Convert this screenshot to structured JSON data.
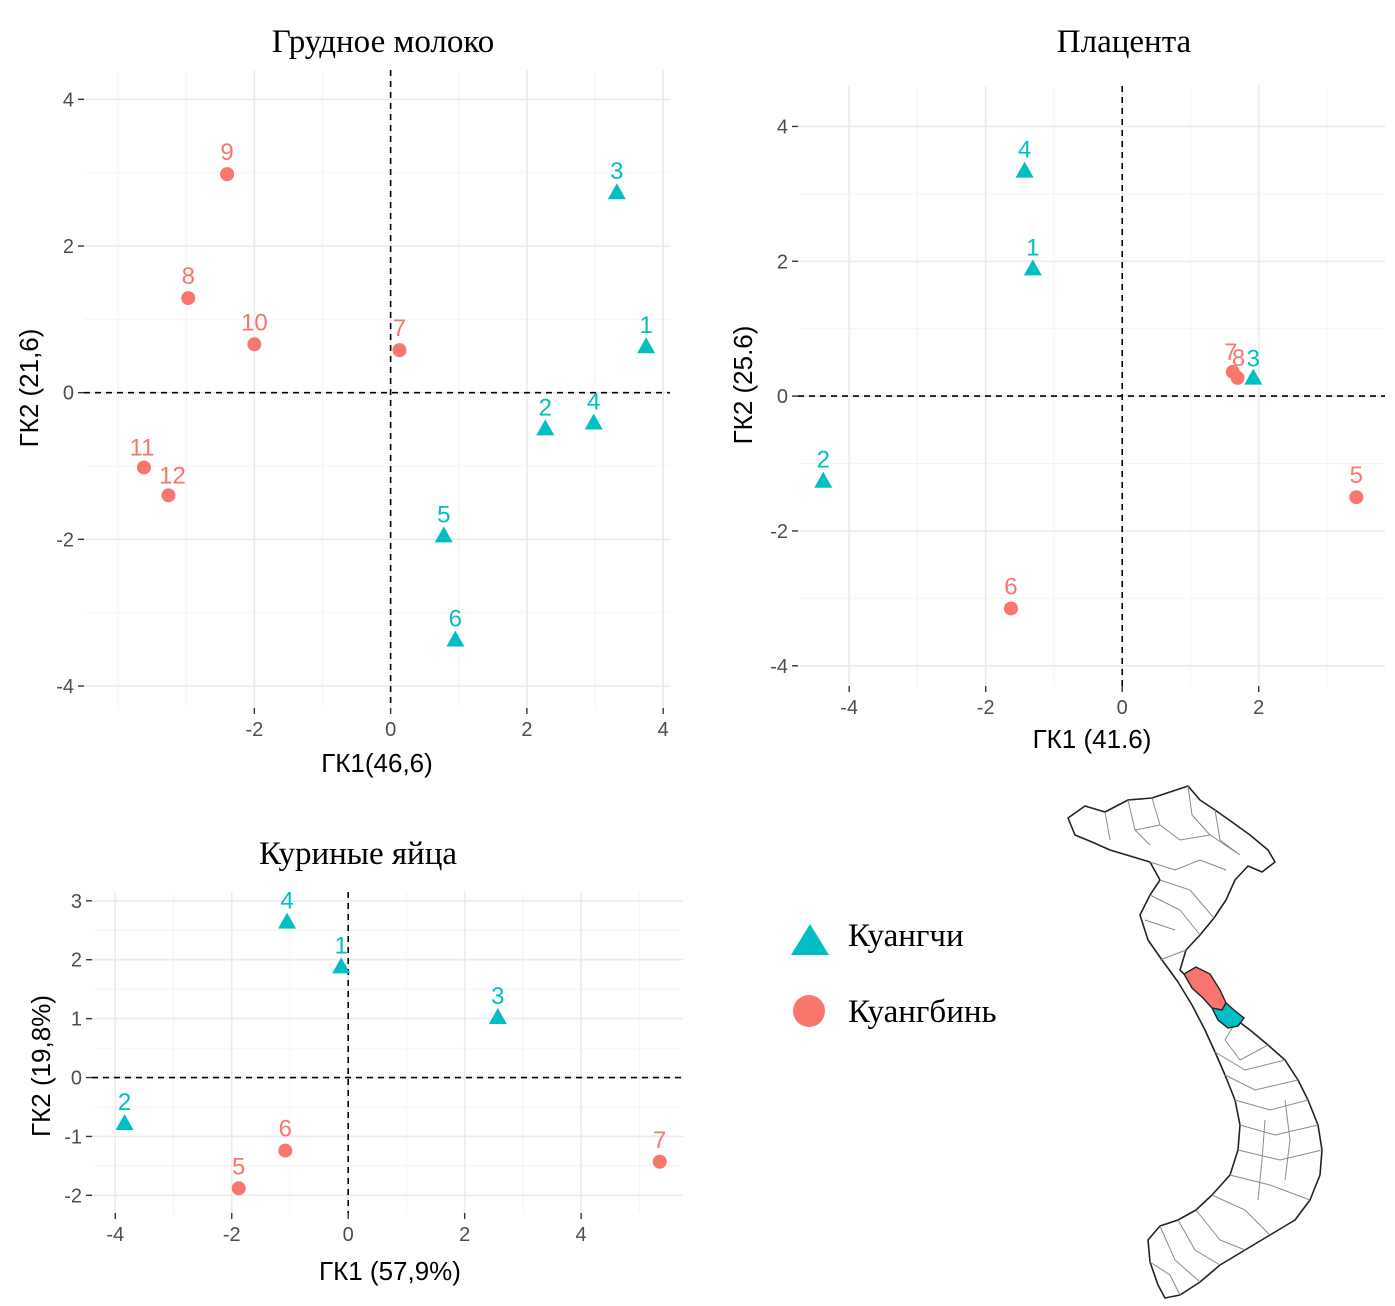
{
  "colors": {
    "quang_tri": "#00BFC4",
    "quang_binh": "#F8766D"
  },
  "legend": {
    "items": [
      {
        "key": "quang_tri",
        "label": "Куангчи",
        "shape": "triangle"
      },
      {
        "key": "quang_binh",
        "label": "Куангбинь",
        "shape": "circle"
      }
    ]
  },
  "map": {
    "icon": "vietnam-map-icon",
    "highlighted": [
      "quang_binh",
      "quang_tri"
    ]
  },
  "chart_data": [
    {
      "id": "breast-milk",
      "type": "scatter",
      "title": "Грудное молоко",
      "xlabel": "ГК1(46,6)",
      "ylabel": "ГК2 (21,6)",
      "xlim": [
        -4.5,
        4.1
      ],
      "ylim": [
        -4.3,
        4.4
      ],
      "xticks": [
        -2,
        0,
        2,
        4
      ],
      "yticks": [
        -4,
        -2,
        0,
        2,
        4
      ],
      "grid": true,
      "series": [
        {
          "group": "quang_tri",
          "points": [
            {
              "label": "1",
              "x": 3.75,
              "y": 0.62
            },
            {
              "label": "2",
              "x": 2.27,
              "y": -0.5
            },
            {
              "label": "3",
              "x": 3.32,
              "y": 2.72
            },
            {
              "label": "4",
              "x": 2.98,
              "y": -0.42
            },
            {
              "label": "5",
              "x": 0.78,
              "y": -1.96
            },
            {
              "label": "6",
              "x": 0.95,
              "y": -3.38
            }
          ]
        },
        {
          "group": "quang_binh",
          "points": [
            {
              "label": "7",
              "x": 0.13,
              "y": 0.58
            },
            {
              "label": "8",
              "x": -2.97,
              "y": 1.29
            },
            {
              "label": "9",
              "x": -2.4,
              "y": 2.98
            },
            {
              "label": "10",
              "x": -2.0,
              "y": 0.66
            },
            {
              "label": "11",
              "x": -3.62,
              "y": -1.02
            },
            {
              "label": "12",
              "x": -3.26,
              "y": -1.4
            }
          ]
        }
      ]
    },
    {
      "id": "placenta",
      "type": "scatter",
      "title": "Плацента",
      "xlabel": "ГК1 (41.6)",
      "ylabel": "ГК2 (25.6)",
      "xlim": [
        -4.75,
        3.85
      ],
      "ylim": [
        -4.3,
        4.6
      ],
      "xticks": [
        -4,
        -2,
        0,
        2
      ],
      "yticks": [
        -4,
        -2,
        0,
        2,
        4
      ],
      "grid": true,
      "series": [
        {
          "group": "quang_tri",
          "points": [
            {
              "label": "1",
              "x": -1.31,
              "y": 1.88
            },
            {
              "label": "2",
              "x": -4.38,
              "y": -1.27
            },
            {
              "label": "3",
              "x": 1.92,
              "y": 0.26
            },
            {
              "label": "4",
              "x": -1.43,
              "y": 3.33
            }
          ]
        },
        {
          "group": "quang_binh",
          "points": [
            {
              "label": "5",
              "x": 3.43,
              "y": -1.5
            },
            {
              "label": "6",
              "x": -1.63,
              "y": -3.15
            },
            {
              "label": "7",
              "x": 1.62,
              "y": 0.36
            },
            {
              "label": "8",
              "x": 1.69,
              "y": 0.27
            }
          ]
        }
      ]
    },
    {
      "id": "chicken-eggs",
      "type": "scatter",
      "title": "Куриные яйца",
      "xlabel": "ГК1 (57,9%)",
      "ylabel": "ГК2 (19,8%)",
      "xlim": [
        -4.4,
        5.75
      ],
      "ylim": [
        -2.3,
        3.15
      ],
      "xticks": [
        -4,
        -2,
        0,
        2,
        4
      ],
      "yticks": [
        -2,
        -1,
        0,
        1,
        2,
        3
      ],
      "grid": true,
      "series": [
        {
          "group": "quang_tri",
          "points": [
            {
              "label": "1",
              "x": -0.12,
              "y": 1.87
            },
            {
              "label": "2",
              "x": -3.84,
              "y": -0.79
            },
            {
              "label": "3",
              "x": 2.57,
              "y": 1.01
            },
            {
              "label": "4",
              "x": -1.05,
              "y": 2.63
            }
          ]
        },
        {
          "group": "quang_binh",
          "points": [
            {
              "label": "5",
              "x": -1.88,
              "y": -1.88
            },
            {
              "label": "6",
              "x": -1.08,
              "y": -1.24
            },
            {
              "label": "7",
              "x": 5.35,
              "y": -1.43
            }
          ]
        }
      ]
    }
  ]
}
